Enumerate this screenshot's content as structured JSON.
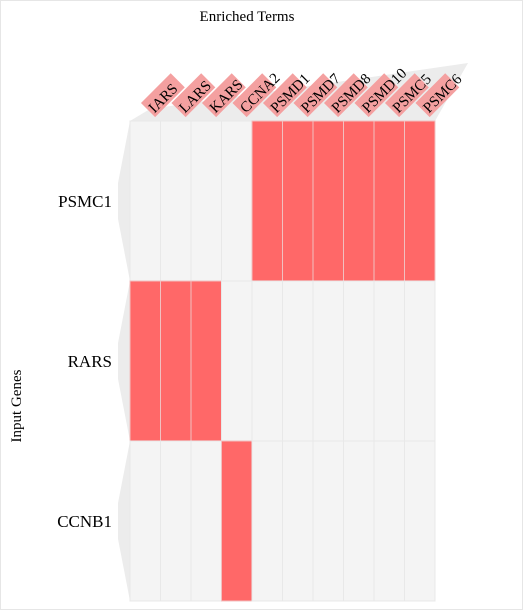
{
  "chart_data": {
    "type": "heatmap",
    "x_title": "Enriched Terms",
    "y_title": "Input Genes",
    "columns": [
      "IARS",
      "LARS",
      "KARS",
      "CCNA2",
      "PSMD1",
      "PSMD7",
      "PSMD8",
      "PSMD10",
      "PSMC5",
      "PSMC6"
    ],
    "rows": [
      "PSMC1",
      "RARS",
      "CCNB1"
    ],
    "values": [
      [
        0,
        0,
        0,
        0,
        1,
        1,
        1,
        1,
        1,
        1
      ],
      [
        1,
        1,
        1,
        0,
        0,
        0,
        0,
        0,
        0,
        0
      ],
      [
        0,
        0,
        0,
        1,
        0,
        0,
        0,
        0,
        0,
        0
      ]
    ],
    "colors": {
      "filled": "#ff6868",
      "empty": "#f4f4f4",
      "column_label_bg": "#f4a0a0",
      "row_fan": "#ececec",
      "col_fan": "#ececec"
    }
  }
}
